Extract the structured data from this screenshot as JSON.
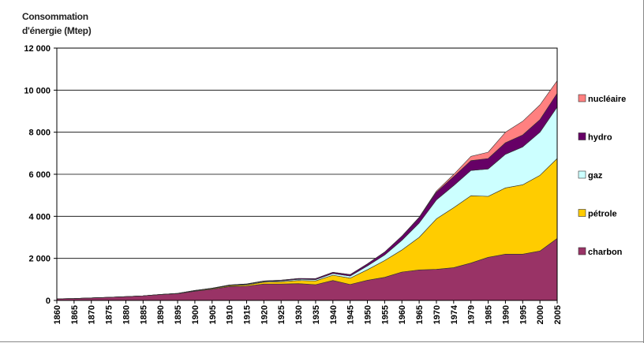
{
  "chart_data": {
    "type": "area",
    "stacked": true,
    "ylabel_line1": "Consommation",
    "ylabel_line2": "d'énergie (Mtep)",
    "xlabel": "",
    "ylim": [
      0,
      12000
    ],
    "yticks": [
      0,
      2000,
      4000,
      6000,
      8000,
      10000,
      12000
    ],
    "ytick_labels": [
      "0",
      "2 000",
      "4 000",
      "6 000",
      "8 000",
      "10 000",
      "12 000"
    ],
    "grid": true,
    "legend_position": "right",
    "categories": [
      "1860",
      "1865",
      "1870",
      "1875",
      "1880",
      "1885",
      "1890",
      "1895",
      "1900",
      "1905",
      "1910",
      "1915",
      "1920",
      "1925",
      "1930",
      "1935",
      "1940",
      "1945",
      "1950",
      "1955",
      "1960",
      "1965",
      "1970",
      "1974",
      "1979",
      "1985",
      "1990",
      "1995",
      "2000",
      "2005"
    ],
    "series": [
      {
        "name": "charbon",
        "color": "#993366",
        "values": [
          80,
          90,
          120,
          150,
          180,
          220,
          280,
          320,
          440,
          530,
          660,
          680,
          780,
          780,
          800,
          750,
          950,
          760,
          960,
          1100,
          1350,
          1450,
          1480,
          1560,
          1780,
          2050,
          2200,
          2200,
          2350,
          2950
        ]
      },
      {
        "name": "pétrole",
        "color": "#ffcc00",
        "values": [
          0,
          0,
          0,
          0,
          0,
          0,
          5,
          10,
          20,
          30,
          40,
          60,
          90,
          110,
          150,
          180,
          250,
          300,
          500,
          800,
          1050,
          1550,
          2400,
          2850,
          3200,
          2900,
          3150,
          3300,
          3600,
          3800
        ]
      },
      {
        "name": "gaz",
        "color": "#ccffff",
        "values": [
          0,
          0,
          0,
          0,
          0,
          0,
          0,
          5,
          10,
          15,
          20,
          25,
          30,
          40,
          55,
          60,
          80,
          100,
          180,
          260,
          460,
          680,
          900,
          1050,
          1200,
          1300,
          1600,
          1800,
          2050,
          2450
        ]
      },
      {
        "name": "hydro",
        "color": "#660066",
        "values": [
          0,
          0,
          0,
          0,
          0,
          0,
          0,
          0,
          5,
          10,
          15,
          20,
          25,
          35,
          40,
          50,
          60,
          70,
          100,
          140,
          200,
          260,
          370,
          430,
          470,
          500,
          550,
          570,
          600,
          650
        ]
      },
      {
        "name": "nucléaire",
        "color": "#ff8080",
        "values": [
          0,
          0,
          0,
          0,
          0,
          0,
          0,
          0,
          0,
          0,
          0,
          0,
          0,
          0,
          0,
          0,
          0,
          0,
          0,
          0,
          0,
          20,
          50,
          100,
          200,
          300,
          500,
          650,
          700,
          600
        ]
      }
    ]
  }
}
